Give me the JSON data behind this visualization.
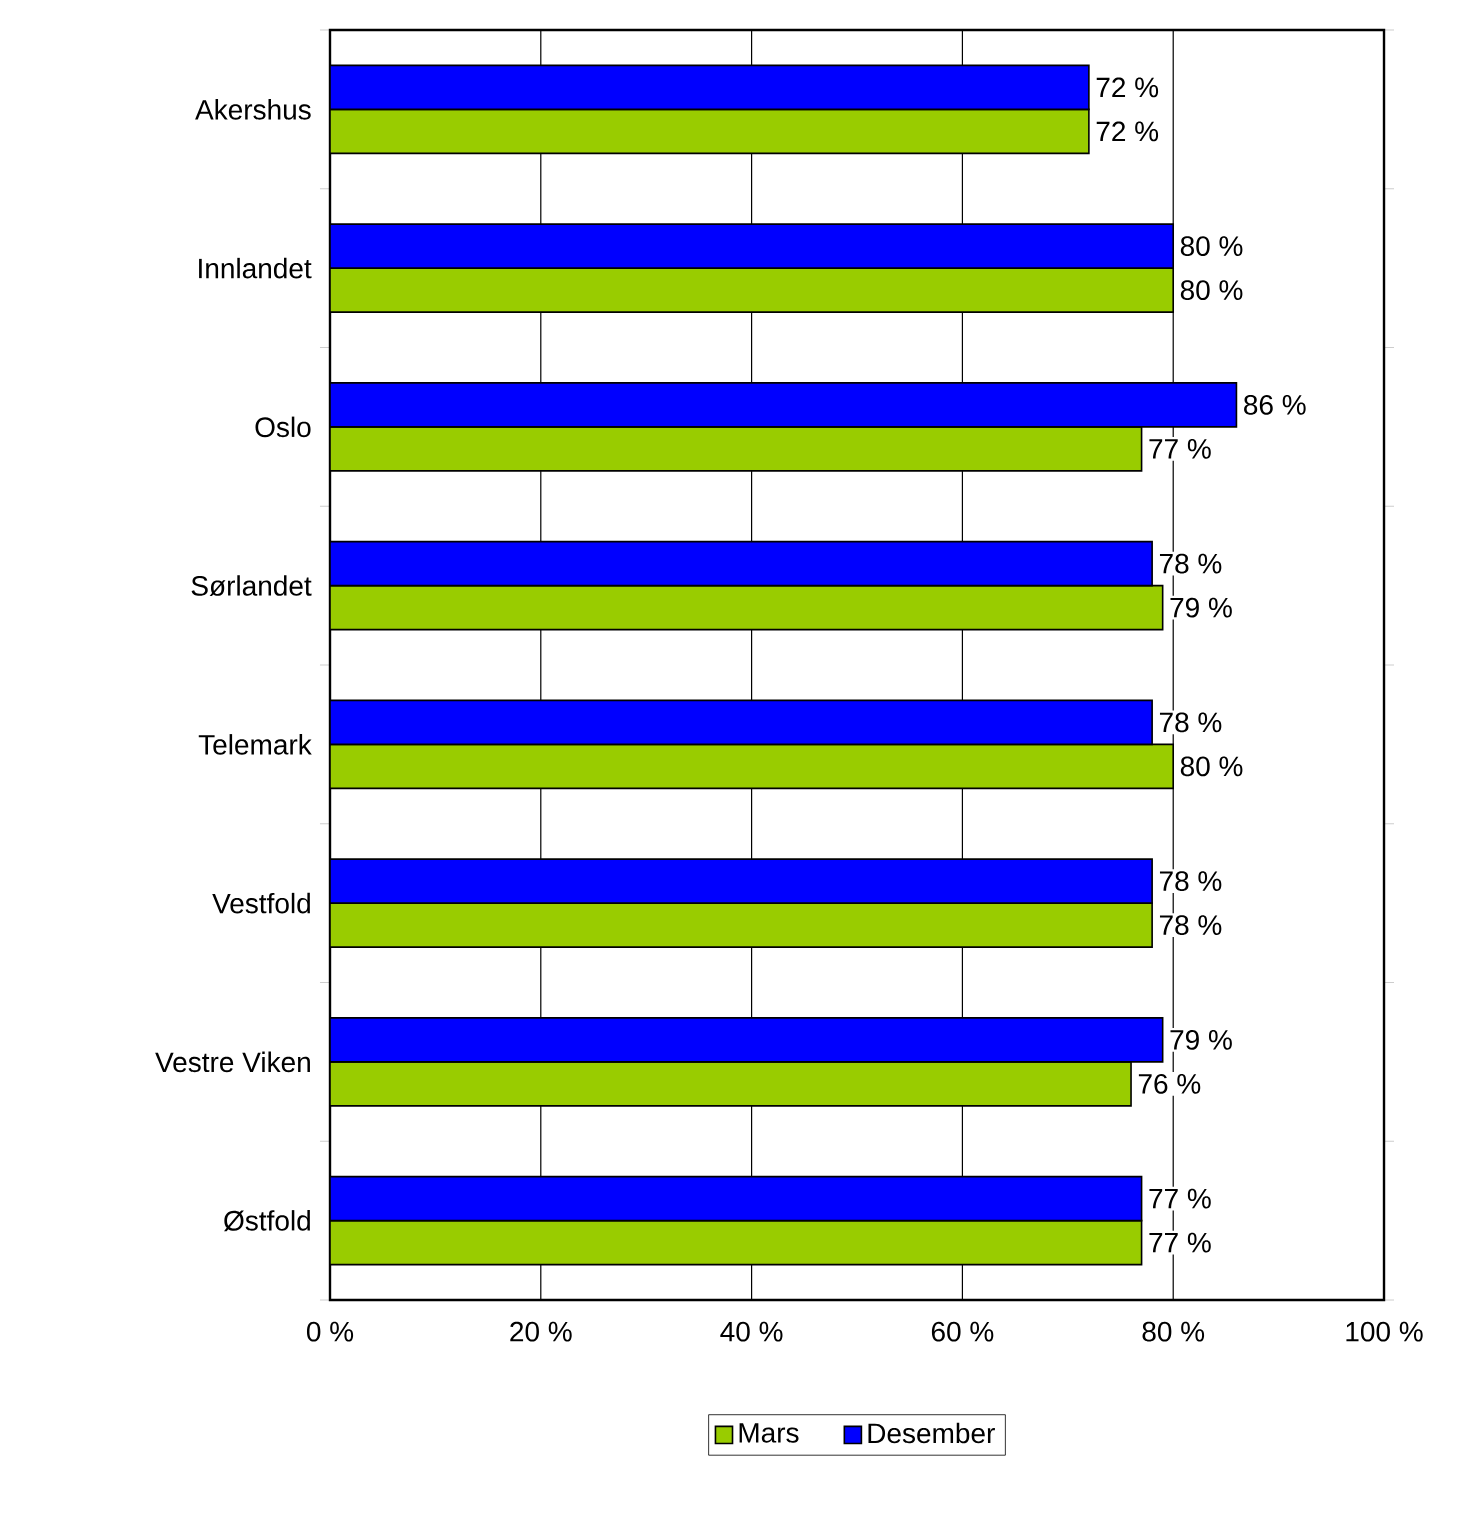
{
  "chart_data": {
    "type": "bar",
    "orientation": "horizontal",
    "categories": [
      "Akershus",
      "Innlandet",
      "Oslo",
      "Sørlandet",
      "Telemark",
      "Vestfold",
      "Vestre Viken",
      "Østfold"
    ],
    "series": [
      {
        "name": "Mars",
        "color": "#99cc00",
        "values": [
          72,
          80,
          77,
          79,
          80,
          78,
          76,
          77
        ],
        "value_labels": [
          "72 %",
          "80 %",
          "77 %",
          "79 %",
          "80 %",
          "78 %",
          "76 %",
          "77 %"
        ]
      },
      {
        "name": "Desember",
        "color": "#0000ff",
        "values": [
          72,
          80,
          86,
          78,
          78,
          78,
          79,
          77
        ],
        "value_labels": [
          "72 %",
          "80 %",
          "86 %",
          "78 %",
          "78 %",
          "78 %",
          "79 %",
          "77 %"
        ]
      }
    ],
    "xlim": [
      0,
      100
    ],
    "xticks": [
      {
        "value": 0,
        "label": "0 %"
      },
      {
        "value": 20,
        "label": "20 %"
      },
      {
        "value": 40,
        "label": "40 %"
      },
      {
        "value": 60,
        "label": "60 %"
      },
      {
        "value": 80,
        "label": "80 %"
      },
      {
        "value": 100,
        "label": "100 %"
      }
    ],
    "grid": "x",
    "legend": "bottom"
  }
}
